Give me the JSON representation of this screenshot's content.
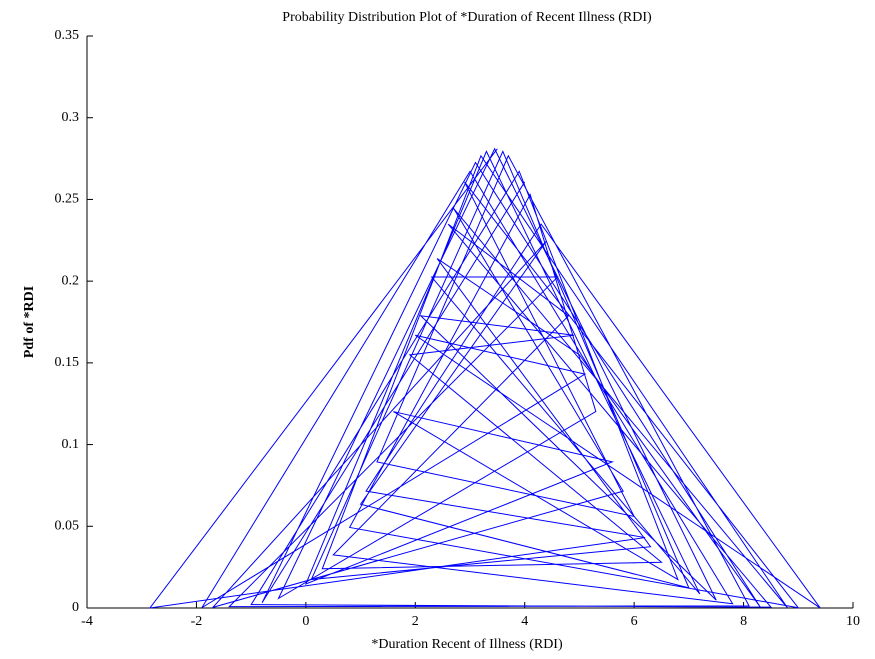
{
  "chart_data": {
    "type": "line",
    "title": "Probability Distribution Plot of *Duration of Recent Illness (RDI)",
    "x_label": "*Duration Recent of Illness (RDI)",
    "y_label": "Pdf of *RDI",
    "color": "#0000ff",
    "x": [
      3.5,
      -2.85,
      6.2,
      1.1,
      4.3,
      9.4,
      2.0,
      5.1,
      -1.9,
      3.0,
      7.8,
      0.5,
      4.8,
      2.6,
      8.5,
      -1.0,
      3.9,
      6.8,
      1.6,
      5.6,
      0.0,
      3.3,
      7.2,
      2.3,
      4.6,
      -1.4,
      8.1,
      3.7,
      1.3,
      6.0,
      2.9,
      9.0,
      0.8,
      4.1,
      5.3,
      -0.5,
      3.45,
      7.5,
      2.1,
      4.9,
      1.9,
      6.5,
      0.3,
      3.2,
      8.8,
      2.7,
      5.8,
      -1.7,
      4.4,
      1.0,
      7.0,
      3.6,
      0.1,
      6.3,
      2.4,
      5.0,
      8.3,
      3.1,
      -0.8,
      4.0
    ],
    "values": [
      0.281,
      1e-05,
      0.0431,
      0.0715,
      0.2349,
      4e-05,
      0.1669,
      0.1431,
      0.00023,
      0.2672,
      0.00258,
      0.0325,
      0.1788,
      0.2349,
      0.0005,
      0.00207,
      0.2672,
      0.0174,
      0.1202,
      0.0894,
      0.0147,
      0.2794,
      0.0086,
      0.2025,
      0.2025,
      0.00082,
      0.00132,
      0.2767,
      0.0894,
      0.056,
      0.2607,
      0.00014,
      0.0493,
      0.253,
      0.1202,
      0.00587,
      0.281,
      0.00481,
      0.1788,
      0.1669,
      0.1549,
      0.028,
      0.024,
      0.2767,
      0.00023,
      0.2445,
      0.0715,
      0.00039,
      0.2247,
      0.0635,
      0.0123,
      0.2794,
      0.0174,
      0.0375,
      0.2138,
      0.1549,
      0.00082,
      0.2726,
      0.00319,
      0.2607
    ],
    "xlim": [
      -4,
      10
    ],
    "xticks": [
      -4,
      -2,
      0,
      2,
      4,
      6,
      8,
      10
    ],
    "ylim": [
      0,
      0.35
    ],
    "yticks": [
      0,
      0.05,
      0.1,
      0.15,
      0.2,
      0.25,
      0.3,
      0.35
    ],
    "grid": false
  }
}
